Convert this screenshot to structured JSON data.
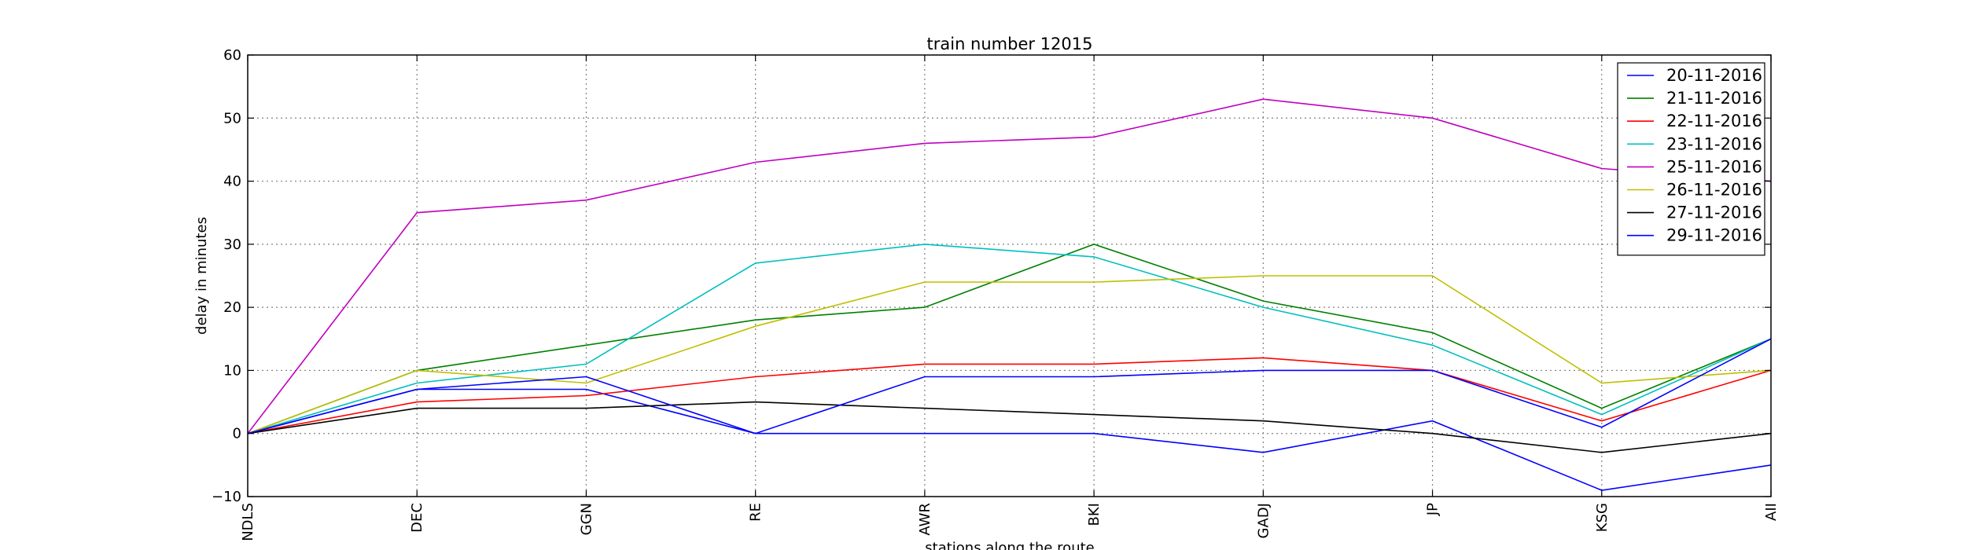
{
  "chart_data": {
    "type": "line",
    "title": "train number 12015",
    "xlabel": "stations along the route",
    "ylabel": "delay in minutes",
    "categories": [
      "NDLS",
      "DEC",
      "GGN",
      "RE",
      "AWR",
      "BKI",
      "GADJ",
      "JP",
      "KSG",
      "AII"
    ],
    "ylim": [
      -10,
      60
    ],
    "yticks": [
      -10,
      0,
      10,
      20,
      30,
      40,
      50,
      60
    ],
    "grid": true,
    "legend_position": "top-right",
    "series": [
      {
        "name": "20-11-2016",
        "color": "#0000ff",
        "values": [
          0,
          7,
          7,
          0,
          0,
          0,
          -3,
          2,
          -9,
          -5
        ]
      },
      {
        "name": "21-11-2016",
        "color": "#008000",
        "values": [
          0,
          10,
          14,
          18,
          20,
          30,
          21,
          16,
          4,
          15
        ]
      },
      {
        "name": "22-11-2016",
        "color": "#ff0000",
        "values": [
          0,
          5,
          6,
          9,
          11,
          11,
          12,
          10,
          2,
          10
        ]
      },
      {
        "name": "23-11-2016",
        "color": "#00bfbf",
        "values": [
          0,
          8,
          11,
          27,
          30,
          28,
          20,
          14,
          3,
          15
        ]
      },
      {
        "name": "25-11-2016",
        "color": "#bf00bf",
        "values": [
          0,
          35,
          37,
          43,
          46,
          47,
          53,
          50,
          42,
          40
        ]
      },
      {
        "name": "26-11-2016",
        "color": "#bfbf00",
        "values": [
          0,
          10,
          8,
          17,
          24,
          24,
          25,
          25,
          8,
          10
        ]
      },
      {
        "name": "27-11-2016",
        "color": "#000000",
        "values": [
          0,
          4,
          4,
          5,
          4,
          3,
          2,
          0,
          -3,
          0
        ]
      },
      {
        "name": "29-11-2016",
        "color": "#0000ff",
        "values": [
          0,
          7,
          9,
          0,
          9,
          9,
          10,
          10,
          1,
          15
        ]
      }
    ]
  }
}
